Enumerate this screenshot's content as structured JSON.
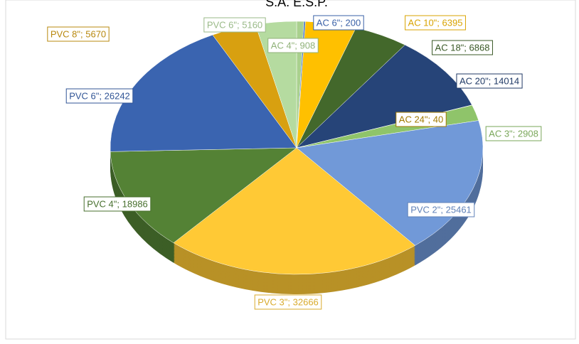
{
  "chart_data": {
    "type": "pie",
    "title": "S.A. E.S.P.",
    "value_labels": [
      "AC 4\"; 908",
      "AC 6\"; 200",
      "AC 10\"; 6395",
      "AC 18\"; 6868",
      "AC 20\"; 14014",
      "AC 24\"; 40",
      "AC 3\"; 2908",
      "PVC 2\"; 25461",
      "PVC 3\"; 32666",
      "PVC 4\"; 18986",
      "PVC 6\"; 26242",
      "PVC 8\"; 5670",
      "PVC 6\"; 5160"
    ],
    "values": [
      908,
      200,
      6395,
      6868,
      14014,
      40,
      2908,
      25461,
      32666,
      18986,
      26242,
      5670,
      5160
    ],
    "colors": [
      "#a9d18e",
      "#4472c4",
      "#ffc000",
      "#43682b",
      "#264478",
      "#bf8f00",
      "#8fc46a",
      "#7199d8",
      "#ffc935",
      "#548235",
      "#3a64b0",
      "#d8a010",
      "#b5dba0"
    ]
  }
}
